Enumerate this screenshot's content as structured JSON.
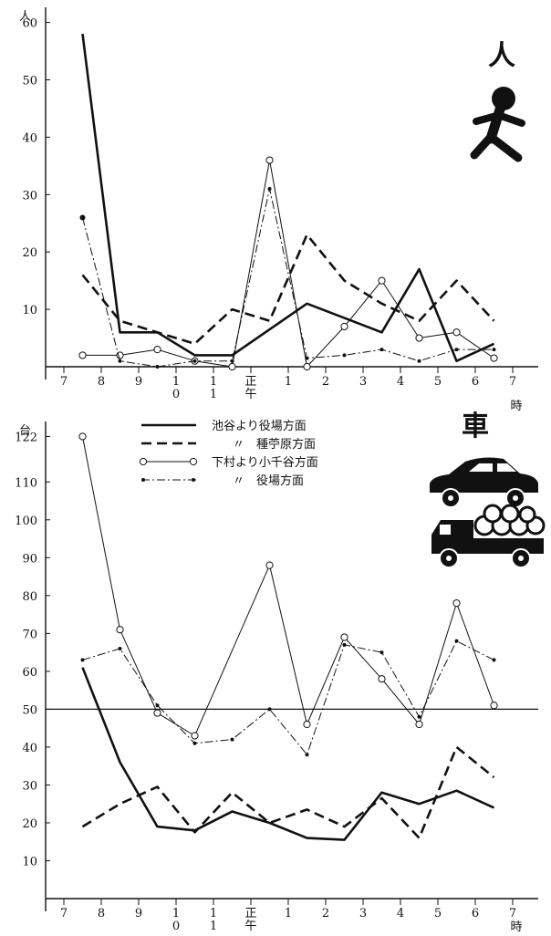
{
  "chart_data": [
    {
      "type": "line",
      "unit_label": "人",
      "icon_label": "人",
      "xlabel": "時",
      "x_ticks": [
        "7",
        "8",
        "9",
        "10",
        "11",
        "正午",
        "1",
        "2",
        "3",
        "4",
        "5",
        "6",
        "7"
      ],
      "x_tick_values": [
        7,
        8,
        9,
        10,
        11,
        12,
        13,
        14,
        15,
        16,
        17,
        18,
        19
      ],
      "ylim": [
        0,
        62
      ],
      "y_ticks": [
        10,
        20,
        30,
        40,
        50,
        60
      ],
      "series": [
        {
          "key": "ikeya",
          "x": [
            7.5,
            8.5,
            9.5,
            10.5,
            11.5,
            13.5,
            15.5,
            16.5,
            17.5,
            18.5
          ],
          "y": [
            58,
            6,
            6,
            2,
            2,
            11,
            6,
            17,
            1,
            4
          ]
        },
        {
          "key": "tanehara",
          "x": [
            7.5,
            8.5,
            9.5,
            10.5,
            11.5,
            12.5,
            13.5,
            14.5,
            15.5,
            16.5,
            17.5,
            18.5
          ],
          "y": [
            16,
            8,
            6,
            4,
            10,
            8,
            23,
            15,
            11,
            8,
            15,
            8
          ]
        },
        {
          "key": "shimomura",
          "x": [
            7.5,
            8.5,
            9.5,
            10.5,
            11.5,
            12.5,
            13.5,
            14.5,
            15.5,
            16.5,
            17.5,
            18.5
          ],
          "y": [
            2,
            2,
            3,
            1,
            0,
            36,
            0,
            7,
            15,
            5,
            6,
            1.5
          ]
        },
        {
          "key": "shimomura_yakuba",
          "x": [
            7.5,
            8.5,
            9.5,
            10.5,
            11.5,
            12.5,
            13.5,
            14.5,
            15.5,
            16.5,
            17.5,
            18.5
          ],
          "y": [
            26,
            1,
            0,
            1,
            1,
            31,
            1.5,
            2,
            3,
            1,
            3,
            3
          ]
        }
      ]
    },
    {
      "type": "line",
      "unit_label": "台",
      "icon_label": "車",
      "xlabel": "時",
      "x_ticks": [
        "7",
        "8",
        "9",
        "10",
        "11",
        "正午",
        "1",
        "2",
        "3",
        "4",
        "5",
        "6",
        "7"
      ],
      "x_tick_values": [
        7,
        8,
        9,
        10,
        11,
        12,
        13,
        14,
        15,
        16,
        17,
        18,
        19
      ],
      "ylim": [
        0,
        125
      ],
      "y_ticks": [
        10,
        20,
        30,
        40,
        50,
        60,
        70,
        80,
        90,
        100,
        110,
        122
      ],
      "reference_line": 50,
      "series": [
        {
          "key": "ikeya",
          "x": [
            7.5,
            8.5,
            9.5,
            10.5,
            11.5,
            12.5,
            13.5,
            14.5,
            15.5,
            16.5,
            17.5,
            18.5
          ],
          "y": [
            61,
            36,
            19,
            18,
            23,
            20,
            16,
            15.5,
            28,
            25,
            28.5,
            24
          ]
        },
        {
          "key": "tanehara",
          "x": [
            7.5,
            8.5,
            9.5,
            10.5,
            11.5,
            12.5,
            13.5,
            14.5,
            15.5,
            16.5,
            17.5,
            18.5
          ],
          "y": [
            19,
            25,
            29.5,
            17.5,
            28,
            20,
            23.5,
            19,
            26.5,
            16,
            40,
            32
          ]
        },
        {
          "key": "shimomura",
          "x": [
            7.5,
            8.5,
            9.5,
            10.5,
            11.5,
            12.5,
            13.5,
            14.5,
            15.5,
            16.5,
            17.5,
            18.5
          ],
          "y": [
            122,
            71,
            49,
            43,
            null,
            88,
            46,
            69,
            58,
            46,
            78,
            51
          ]
        },
        {
          "key": "shimomura_yakuba",
          "x": [
            7.5,
            8.5,
            9.5,
            10.5,
            11.5,
            12.5,
            13.5,
            14.5,
            15.5,
            16.5,
            17.5,
            18.5
          ],
          "y": [
            63,
            66,
            51,
            41,
            42,
            50,
            38,
            67,
            65,
            48,
            68,
            63
          ]
        }
      ]
    }
  ],
  "legend": [
    {
      "key": "ikeya",
      "label": "池谷より役場方面"
    },
    {
      "key": "tanehara",
      "label": "〃　種苧原方面"
    },
    {
      "key": "shimomura",
      "label": "下村より小千谷方面"
    },
    {
      "key": "shimomura_yakuba",
      "label": "〃　役場方面"
    }
  ],
  "colors": {
    "ink": "#111111",
    "background": "#ffffff"
  },
  "icons": {
    "pedestrian": "walking-person-icon",
    "car": "car-icon",
    "truck": "truck-icon"
  }
}
